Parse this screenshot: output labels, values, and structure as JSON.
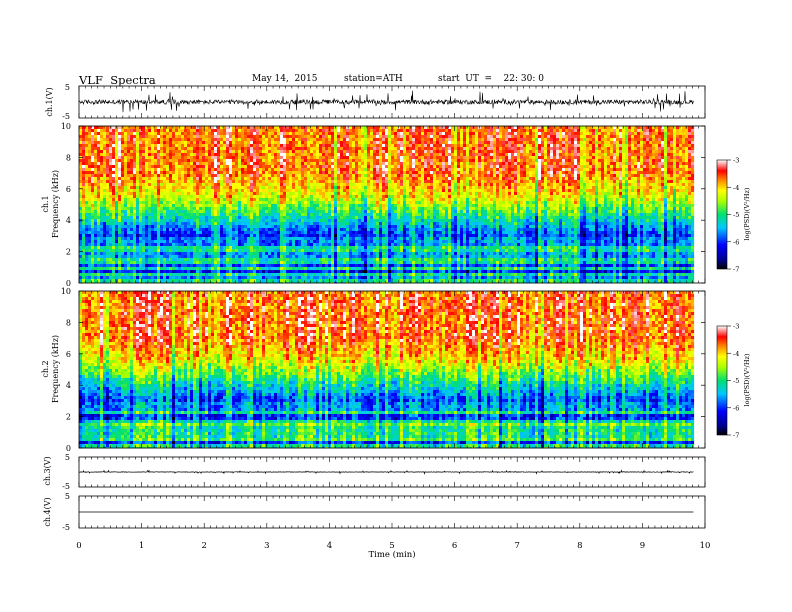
{
  "header": {
    "title": "VLF  Spectra",
    "date": "May 14,  2015",
    "station": "station=ATH",
    "start_ut": "start  UT  =    22: 30: 0"
  },
  "chart_data": [
    {
      "type": "line",
      "panel": "ch1-waveform",
      "ylabel": "ch.1(V)",
      "ylim": [
        -5,
        5
      ],
      "yticks": [
        "5",
        "-5"
      ],
      "xlim": [
        0,
        10
      ],
      "data_extent_min": 9.82,
      "trace": {
        "baseline": 0,
        "noise_amplitude": 1.4,
        "spike_amplitude": 3.0,
        "color": "#000000"
      }
    },
    {
      "type": "heatmap",
      "panel": "ch1-spectrogram",
      "ylabel": [
        "ch.1",
        "Frequency  (kHz)"
      ],
      "ylim": [
        0,
        10
      ],
      "yticks": [
        "0",
        "2",
        "4",
        "6",
        "8",
        "10"
      ],
      "xlim": [
        0,
        10
      ],
      "data_extent_min": 9.82,
      "colorbar": {
        "label": "log(PSD)(V²/Hz)",
        "ticks": [
          "-3",
          "-4",
          "-5",
          "-6",
          "-7"
        ],
        "range": [
          -7,
          -3
        ]
      }
    },
    {
      "type": "heatmap",
      "panel": "ch2-spectrogram",
      "ylabel": [
        "ch.2",
        "Frequency  (kHz)"
      ],
      "ylim": [
        0,
        10
      ],
      "yticks": [
        "0",
        "2",
        "4",
        "6",
        "8",
        "10"
      ],
      "xlim": [
        0,
        10
      ],
      "data_extent_min": 9.82,
      "colorbar": {
        "label": "log(PSD)(V²/Hz)",
        "ticks": [
          "-3",
          "-4",
          "-5",
          "-6",
          "-7"
        ],
        "range": [
          -7,
          -3
        ]
      }
    },
    {
      "type": "line",
      "panel": "ch3-waveform",
      "ylabel": "ch.3(V)",
      "ylim": [
        -5,
        5
      ],
      "yticks": [
        "5",
        "-5"
      ],
      "xlim": [
        0,
        10
      ],
      "data_extent_min": 9.82,
      "trace": {
        "baseline": 0,
        "noise_amplitude": 0.15,
        "spike_amplitude": 0.5,
        "color": "#000000"
      }
    },
    {
      "type": "line",
      "panel": "ch4-waveform",
      "ylabel": "ch.4(V)",
      "ylim": [
        -5,
        5
      ],
      "yticks": [
        "5",
        "-5"
      ],
      "xlim": [
        0,
        10
      ],
      "data_extent_min": 9.82,
      "trace": {
        "baseline": 0,
        "noise_amplitude": 0.0,
        "spike_amplitude": 0.0,
        "color": "#000000"
      }
    }
  ],
  "xaxis": {
    "label": "Time  (min)",
    "ticks": [
      "0",
      "1",
      "2",
      "3",
      "4",
      "5",
      "6",
      "7",
      "8",
      "9",
      "10"
    ]
  }
}
